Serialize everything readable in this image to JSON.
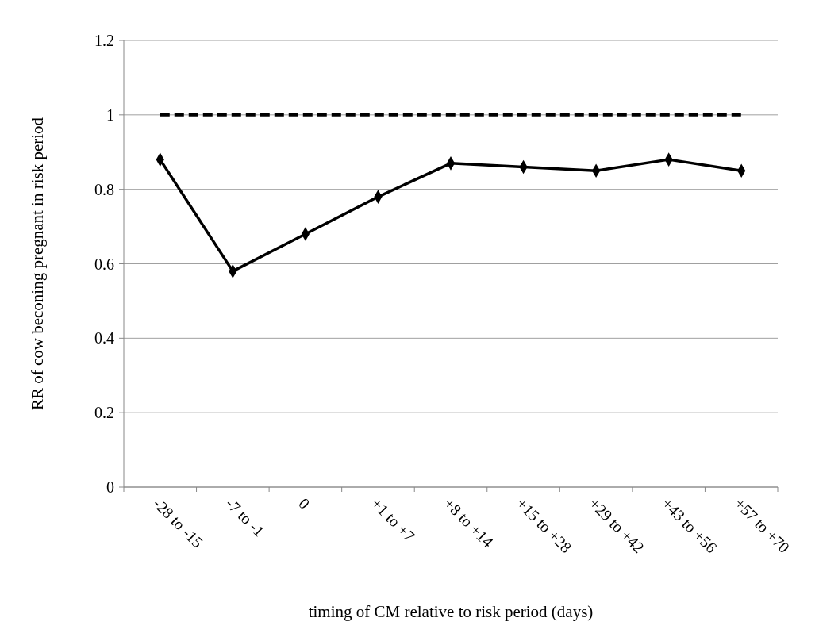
{
  "chart_data": {
    "type": "line",
    "xlabel": "timing of CM relative to risk period (days)",
    "ylabel": "RR of cow beconing pregnant in risk period",
    "categories": [
      "-28 to -15",
      "-7 to -1",
      "0",
      "+1 to +7",
      "+8 to +14",
      "+15 to +28",
      "+29 to +42",
      "+43 to +56",
      "+57 to +70"
    ],
    "series": [
      {
        "color": "#000000",
        "values": [
          0.88,
          0.58,
          0.68,
          0.78,
          0.87,
          0.86,
          0.85,
          0.88,
          0.85
        ]
      }
    ],
    "ylim": [
      0,
      1.2
    ],
    "yticks": [
      0,
      0.2,
      0.4,
      0.6,
      0.8,
      1,
      1.2
    ],
    "grid": "y",
    "marker": "diamond",
    "ref_lines": [
      {
        "axis": "y",
        "value": 1,
        "color": "#000000",
        "line_style": "dashed"
      }
    ]
  }
}
